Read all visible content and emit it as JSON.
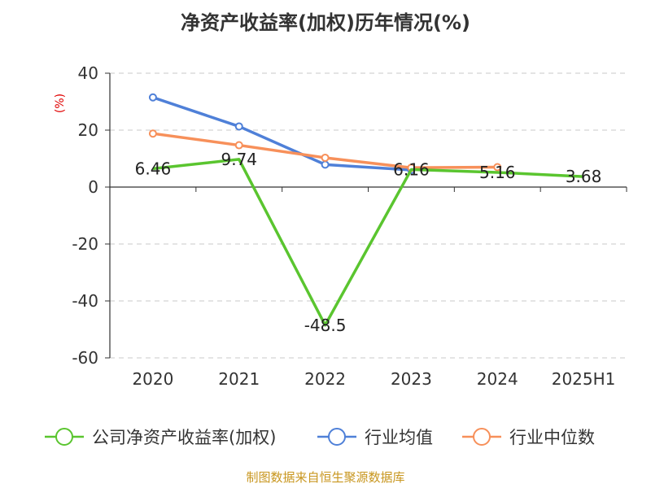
{
  "title": "净资产收益率(加权)历年情况(%)",
  "source": "制图数据来自恒生聚源数据库",
  "chart_data": {
    "type": "line",
    "title": "净资产收益率(加权)历年情况(%)",
    "ylabel": "(%)",
    "ylim": [
      -60,
      40
    ],
    "yticks": [
      40,
      20,
      0,
      -20,
      -40,
      -60
    ],
    "categories": [
      "2020",
      "2021",
      "2022",
      "2023",
      "2024",
      "2025H1"
    ],
    "grid": true,
    "legend_position": "bottom",
    "series": [
      {
        "name": "公司净资产收益率(加权)",
        "color": "#5ac52f",
        "values": [
          6.46,
          9.74,
          -48.5,
          6.16,
          5.16,
          3.68
        ],
        "labels": [
          "6.46",
          "9.74",
          "-48.5",
          "6.16",
          "5.16",
          "3.68"
        ]
      },
      {
        "name": "行业均值",
        "color": "#4f80d8",
        "values": [
          31.5,
          21.3,
          7.9,
          6.0,
          null,
          null
        ]
      },
      {
        "name": "行业中位数",
        "color": "#f7905a",
        "values": [
          18.8,
          14.7,
          10.3,
          6.8,
          7.0,
          null
        ]
      }
    ]
  }
}
